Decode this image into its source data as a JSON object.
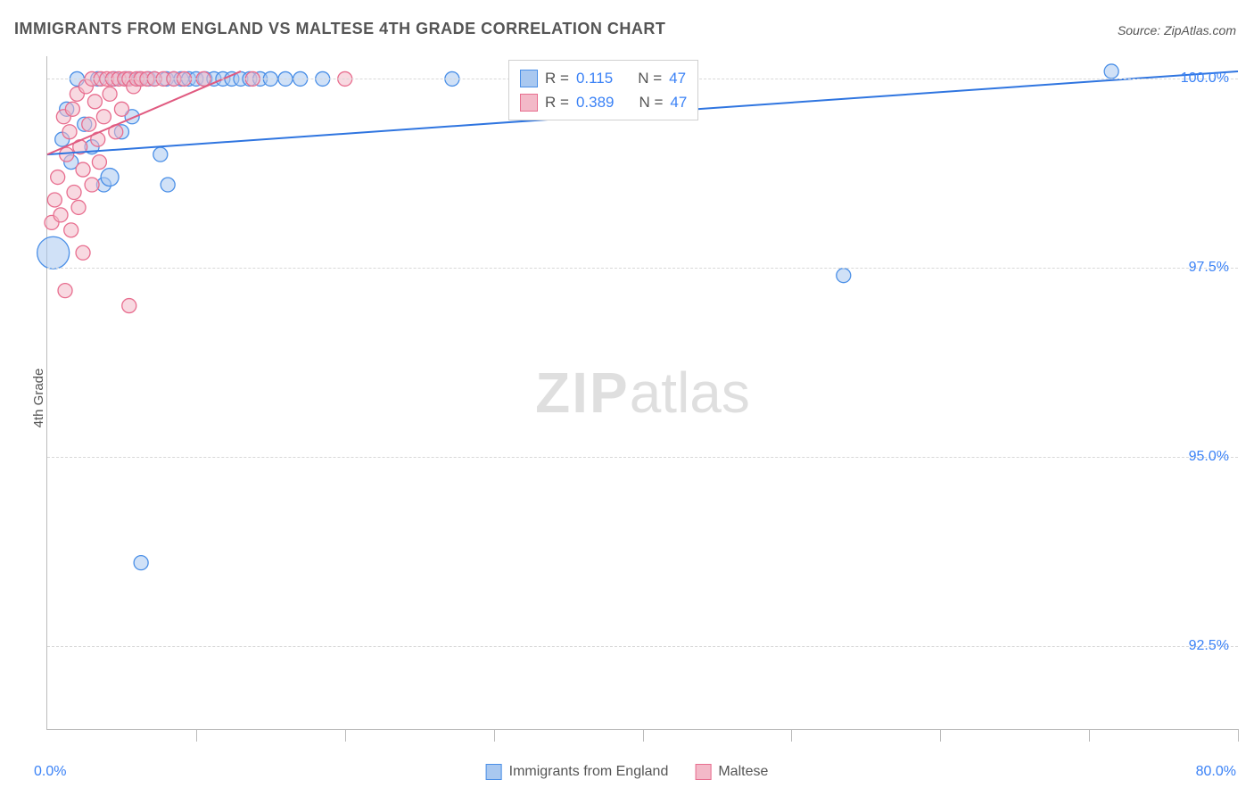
{
  "title": "IMMIGRANTS FROM ENGLAND VS MALTESE 4TH GRADE CORRELATION CHART",
  "source": "Source: ZipAtlas.com",
  "ylabel": "4th Grade",
  "watermark_a": "ZIP",
  "watermark_b": "atlas",
  "chart": {
    "type": "scatter",
    "xlim": [
      0,
      80
    ],
    "ylim": [
      91.4,
      100.3
    ],
    "y_ticks": [
      92.5,
      95.0,
      97.5,
      100.0
    ],
    "y_tick_labels": [
      "92.5%",
      "95.0%",
      "97.5%",
      "100.0%"
    ],
    "x_ticks": [
      0,
      10,
      20,
      30,
      40,
      50,
      60,
      70,
      80
    ],
    "x_min_label": "0.0%",
    "x_max_label": "80.0%",
    "grid_color": "#d8d8d8",
    "axis_color": "#bbbbbb",
    "tick_color": "#3b82f6",
    "series": [
      {
        "name": "Immigrants from England",
        "fill": "#a9c8f0",
        "stroke": "#4a8fe7",
        "line_color": "#2f75e0",
        "r_value": "0.115",
        "n_value": "47",
        "trend": {
          "x1": 0,
          "y1": 99.0,
          "x2": 80,
          "y2": 100.1
        },
        "points": [
          {
            "x": 0.4,
            "y": 97.7,
            "r": 18
          },
          {
            "x": 1.0,
            "y": 99.2,
            "r": 8
          },
          {
            "x": 1.3,
            "y": 99.6,
            "r": 8
          },
          {
            "x": 1.6,
            "y": 98.9,
            "r": 8
          },
          {
            "x": 2.0,
            "y": 100.0,
            "r": 8
          },
          {
            "x": 2.5,
            "y": 99.4,
            "r": 8
          },
          {
            "x": 3.0,
            "y": 99.1,
            "r": 8
          },
          {
            "x": 3.4,
            "y": 100.0,
            "r": 8
          },
          {
            "x": 3.8,
            "y": 98.6,
            "r": 8
          },
          {
            "x": 4.2,
            "y": 98.7,
            "r": 10
          },
          {
            "x": 4.5,
            "y": 100.0,
            "r": 8
          },
          {
            "x": 5.0,
            "y": 99.3,
            "r": 8
          },
          {
            "x": 5.3,
            "y": 100.0,
            "r": 8
          },
          {
            "x": 5.7,
            "y": 99.5,
            "r": 8
          },
          {
            "x": 6.2,
            "y": 100.0,
            "r": 8
          },
          {
            "x": 6.3,
            "y": 93.6,
            "r": 8
          },
          {
            "x": 6.8,
            "y": 100.0,
            "r": 8
          },
          {
            "x": 7.2,
            "y": 100.0,
            "r": 8
          },
          {
            "x": 7.6,
            "y": 99.0,
            "r": 8
          },
          {
            "x": 8.0,
            "y": 100.0,
            "r": 8
          },
          {
            "x": 8.1,
            "y": 98.6,
            "r": 8
          },
          {
            "x": 8.5,
            "y": 100.0,
            "r": 8
          },
          {
            "x": 9.0,
            "y": 100.0,
            "r": 8
          },
          {
            "x": 9.5,
            "y": 100.0,
            "r": 8
          },
          {
            "x": 10.0,
            "y": 100.0,
            "r": 8
          },
          {
            "x": 10.6,
            "y": 100.0,
            "r": 8
          },
          {
            "x": 11.2,
            "y": 100.0,
            "r": 8
          },
          {
            "x": 11.8,
            "y": 100.0,
            "r": 8
          },
          {
            "x": 12.4,
            "y": 100.0,
            "r": 8
          },
          {
            "x": 13.0,
            "y": 100.0,
            "r": 8
          },
          {
            "x": 13.6,
            "y": 100.0,
            "r": 8
          },
          {
            "x": 14.3,
            "y": 100.0,
            "r": 8
          },
          {
            "x": 15.0,
            "y": 100.0,
            "r": 8
          },
          {
            "x": 16.0,
            "y": 100.0,
            "r": 8
          },
          {
            "x": 17.0,
            "y": 100.0,
            "r": 8
          },
          {
            "x": 18.5,
            "y": 100.0,
            "r": 8
          },
          {
            "x": 27.2,
            "y": 100.0,
            "r": 8
          },
          {
            "x": 53.5,
            "y": 97.4,
            "r": 8
          },
          {
            "x": 71.5,
            "y": 100.1,
            "r": 8
          }
        ]
      },
      {
        "name": "Maltese",
        "fill": "#f3b9c8",
        "stroke": "#e86e8f",
        "line_color": "#e05a80",
        "r_value": "0.389",
        "n_value": "47",
        "trend": {
          "x1": 0,
          "y1": 99.0,
          "x2": 13,
          "y2": 100.1
        },
        "points": [
          {
            "x": 0.3,
            "y": 98.1,
            "r": 8
          },
          {
            "x": 0.5,
            "y": 98.4,
            "r": 8
          },
          {
            "x": 0.7,
            "y": 98.7,
            "r": 8
          },
          {
            "x": 0.9,
            "y": 98.2,
            "r": 8
          },
          {
            "x": 1.1,
            "y": 99.5,
            "r": 8
          },
          {
            "x": 1.2,
            "y": 97.2,
            "r": 8
          },
          {
            "x": 1.3,
            "y": 99.0,
            "r": 8
          },
          {
            "x": 1.5,
            "y": 99.3,
            "r": 8
          },
          {
            "x": 1.6,
            "y": 98.0,
            "r": 8
          },
          {
            "x": 1.7,
            "y": 99.6,
            "r": 8
          },
          {
            "x": 1.8,
            "y": 98.5,
            "r": 8
          },
          {
            "x": 2.0,
            "y": 99.8,
            "r": 8
          },
          {
            "x": 2.1,
            "y": 98.3,
            "r": 8
          },
          {
            "x": 2.2,
            "y": 99.1,
            "r": 8
          },
          {
            "x": 2.4,
            "y": 98.8,
            "r": 8
          },
          {
            "x": 2.4,
            "y": 97.7,
            "r": 8
          },
          {
            "x": 2.6,
            "y": 99.9,
            "r": 8
          },
          {
            "x": 2.8,
            "y": 99.4,
            "r": 8
          },
          {
            "x": 3.0,
            "y": 98.6,
            "r": 8
          },
          {
            "x": 3.0,
            "y": 100.0,
            "r": 8
          },
          {
            "x": 3.2,
            "y": 99.7,
            "r": 8
          },
          {
            "x": 3.4,
            "y": 99.2,
            "r": 8
          },
          {
            "x": 3.5,
            "y": 98.9,
            "r": 8
          },
          {
            "x": 3.6,
            "y": 100.0,
            "r": 8
          },
          {
            "x": 3.8,
            "y": 99.5,
            "r": 8
          },
          {
            "x": 4.0,
            "y": 100.0,
            "r": 8
          },
          {
            "x": 4.2,
            "y": 99.8,
            "r": 8
          },
          {
            "x": 4.4,
            "y": 100.0,
            "r": 8
          },
          {
            "x": 4.6,
            "y": 99.3,
            "r": 8
          },
          {
            "x": 4.8,
            "y": 100.0,
            "r": 8
          },
          {
            "x": 5.0,
            "y": 99.6,
            "r": 8
          },
          {
            "x": 5.2,
            "y": 100.0,
            "r": 8
          },
          {
            "x": 5.5,
            "y": 97.0,
            "r": 8
          },
          {
            "x": 5.5,
            "y": 100.0,
            "r": 8
          },
          {
            "x": 5.8,
            "y": 99.9,
            "r": 8
          },
          {
            "x": 6.0,
            "y": 100.0,
            "r": 8
          },
          {
            "x": 6.3,
            "y": 100.0,
            "r": 8
          },
          {
            "x": 6.7,
            "y": 100.0,
            "r": 8
          },
          {
            "x": 7.2,
            "y": 100.0,
            "r": 8
          },
          {
            "x": 7.8,
            "y": 100.0,
            "r": 8
          },
          {
            "x": 8.5,
            "y": 100.0,
            "r": 8
          },
          {
            "x": 9.2,
            "y": 100.0,
            "r": 8
          },
          {
            "x": 10.5,
            "y": 100.0,
            "r": 8
          },
          {
            "x": 13.8,
            "y": 100.0,
            "r": 8
          },
          {
            "x": 20.0,
            "y": 100.0,
            "r": 8
          }
        ]
      }
    ]
  },
  "stats_box": {
    "rows": [
      {
        "swatch_fill": "#a9c8f0",
        "swatch_stroke": "#4a8fe7",
        "r_label": "R =",
        "r_val": "0.115",
        "n_label": "N =",
        "n_val": "47"
      },
      {
        "swatch_fill": "#f3b9c8",
        "swatch_stroke": "#e86e8f",
        "r_label": "R =",
        "r_val": "0.389",
        "n_label": "N =",
        "n_val": "47"
      }
    ]
  },
  "legend": [
    {
      "label": "Immigrants from England",
      "fill": "#a9c8f0",
      "stroke": "#4a8fe7"
    },
    {
      "label": "Maltese",
      "fill": "#f3b9c8",
      "stroke": "#e86e8f"
    }
  ]
}
